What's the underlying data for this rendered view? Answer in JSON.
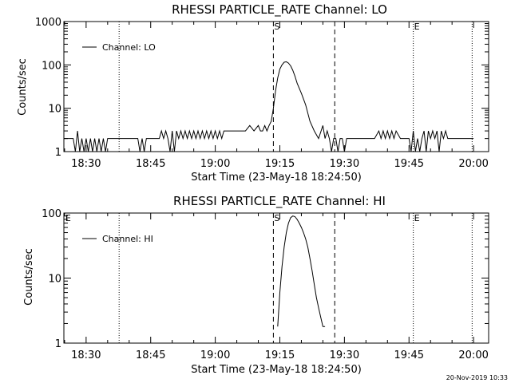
{
  "footer_timestamp": "20-Nov-2019 10:33",
  "chart_data": [
    {
      "type": "line",
      "title": "RHESSI PARTICLE_RATE Channel: LO",
      "xlabel": "Start Time (23-May-18 18:24:50)",
      "ylabel": "Counts/sec",
      "yscale": "log",
      "ylim": [
        1,
        1000
      ],
      "yticks": [
        "1",
        "10",
        "100",
        "1000"
      ],
      "xlim": [
        "18:24:50",
        "20:03:30"
      ],
      "xticks": [
        "18:30",
        "18:45",
        "19:00",
        "19:15",
        "19:30",
        "19:45",
        "20:00"
      ],
      "legend": {
        "label": "Channel: LO",
        "placement": "top-left"
      },
      "markers": [
        {
          "label": "",
          "time": "18:37:40",
          "style": "dotted"
        },
        {
          "label": "S",
          "time": "19:13:30",
          "style": "dashed"
        },
        {
          "label": "",
          "time": "19:27:45",
          "style": "dashed"
        },
        {
          "label": "E",
          "time": "19:46:00",
          "style": "dotted"
        },
        {
          "label": "",
          "time": "19:59:40",
          "style": "dotted"
        }
      ],
      "series": [
        {
          "name": "Channel: LO",
          "x": [
            "18:24:50",
            "18:27:00",
            "18:27:30",
            "18:28:00",
            "18:28:30",
            "18:29:00",
            "18:29:30",
            "18:30:00",
            "18:30:30",
            "18:31:00",
            "18:31:30",
            "18:32:00",
            "18:32:30",
            "18:33:00",
            "18:33:30",
            "18:34:00",
            "18:34:30",
            "18:35:00",
            "18:35:30",
            "18:36:00",
            "18:36:30",
            "18:37:00",
            "18:37:30",
            "18:38:00",
            "18:40:00",
            "18:42:00",
            "18:42:30",
            "18:43:00",
            "18:43:30",
            "18:44:00",
            "18:46:00",
            "18:47:00",
            "18:47:30",
            "18:48:00",
            "18:48:30",
            "18:49:00",
            "18:49:30",
            "18:50:00",
            "18:50:30",
            "18:51:00",
            "18:51:30",
            "18:52:00",
            "18:52:30",
            "18:53:00",
            "18:53:30",
            "18:54:00",
            "18:54:30",
            "18:55:00",
            "18:55:30",
            "18:56:00",
            "18:56:30",
            "18:57:00",
            "18:57:30",
            "18:58:00",
            "18:58:30",
            "18:59:00",
            "18:59:30",
            "19:00:00",
            "19:00:30",
            "19:01:00",
            "19:01:30",
            "19:02:00",
            "19:03:00",
            "19:04:00",
            "19:05:00",
            "19:06:00",
            "19:07:00",
            "19:08:00",
            "19:09:00",
            "19:10:00",
            "19:10:30",
            "19:11:00",
            "19:11:30",
            "19:12:00",
            "19:12:30",
            "19:13:00",
            "19:13:30",
            "19:14:00",
            "19:14:30",
            "19:15:00",
            "19:15:30",
            "19:16:00",
            "19:16:30",
            "19:17:00",
            "19:17:30",
            "19:18:00",
            "19:18:30",
            "19:19:00",
            "19:20:00",
            "19:21:00",
            "19:22:00",
            "19:23:00",
            "19:24:00",
            "19:25:00",
            "19:25:30",
            "19:26:00",
            "19:26:30",
            "19:27:00",
            "19:27:30",
            "19:28:00",
            "19:28:30",
            "19:29:00",
            "19:29:30",
            "19:30:00",
            "19:30:30",
            "19:31:00",
            "19:32:00",
            "19:33:00",
            "19:34:00",
            "19:35:00",
            "19:36:00",
            "19:37:00",
            "19:38:00",
            "19:38:30",
            "19:39:00",
            "19:39:30",
            "19:40:00",
            "19:40:30",
            "19:41:00",
            "19:41:30",
            "19:42:00",
            "19:43:00",
            "19:44:00",
            "19:44:30",
            "19:45:00",
            "19:45:30",
            "19:46:00",
            "19:46:30",
            "19:47:00",
            "19:47:30",
            "19:48:00",
            "19:48:30",
            "19:49:00",
            "19:49:30",
            "19:50:00",
            "19:50:30",
            "19:51:00",
            "19:51:30",
            "19:52:00",
            "19:52:30",
            "19:53:00",
            "19:53:30",
            "19:54:00",
            "19:54:30",
            "19:55:00",
            "19:55:30",
            "19:56:00",
            "19:58:00",
            "20:00:00"
          ],
          "y": [
            2,
            2,
            1,
            3,
            1,
            2,
            1,
            2,
            1,
            2,
            1,
            2,
            1,
            2,
            1,
            2,
            1,
            2,
            2,
            2,
            2,
            2,
            2,
            2,
            2,
            2,
            1,
            2,
            1,
            2,
            2,
            2,
            3,
            2,
            3,
            2,
            1,
            3,
            1,
            3,
            2,
            3,
            2,
            3,
            2,
            3,
            2,
            3,
            2,
            3,
            2,
            3,
            2,
            3,
            2,
            3,
            2,
            3,
            2,
            3,
            2,
            3,
            3,
            3,
            3,
            3,
            3,
            4,
            3,
            4,
            3,
            3,
            4,
            3,
            4,
            5,
            10,
            25,
            50,
            80,
            100,
            115,
            118,
            110,
            95,
            75,
            55,
            38,
            22,
            12,
            5,
            3,
            2,
            4,
            2,
            3,
            2,
            1,
            2,
            2,
            1,
            2,
            2,
            1,
            2,
            2,
            2,
            2,
            2,
            2,
            2,
            2,
            3,
            2,
            3,
            2,
            3,
            2,
            3,
            2,
            3,
            2,
            2,
            2,
            2,
            1,
            3,
            1,
            2,
            1,
            2,
            3,
            1,
            3,
            2,
            3,
            2,
            3,
            1,
            3,
            2,
            3,
            2,
            2,
            2,
            2,
            2,
            2,
            2
          ]
        }
      ]
    },
    {
      "type": "line",
      "title": "RHESSI PARTICLE_RATE Channel: HI",
      "xlabel": "Start Time (23-May-18 18:24:50)",
      "ylabel": "Counts/sec",
      "yscale": "log",
      "ylim": [
        1,
        100
      ],
      "yticks": [
        "1",
        "10",
        "100"
      ],
      "xlim": [
        "18:24:50",
        "20:03:30"
      ],
      "xticks": [
        "18:30",
        "18:45",
        "19:00",
        "19:15",
        "19:30",
        "19:45",
        "20:00"
      ],
      "legend": {
        "label": "Channel: HI",
        "placement": "top-left"
      },
      "markers": [
        {
          "label": "E",
          "time": "18:25:00",
          "style": "none"
        },
        {
          "label": "",
          "time": "18:37:40",
          "style": "dotted"
        },
        {
          "label": "S",
          "time": "19:13:30",
          "style": "dashed"
        },
        {
          "label": "",
          "time": "19:27:45",
          "style": "dashed"
        },
        {
          "label": "E",
          "time": "19:46:00",
          "style": "dotted"
        },
        {
          "label": "",
          "time": "19:59:40",
          "style": "dotted"
        }
      ],
      "series": [
        {
          "name": "Channel: HI",
          "x": [
            "19:14:30",
            "19:15:00",
            "19:15:30",
            "19:16:00",
            "19:16:30",
            "19:17:00",
            "19:17:30",
            "19:18:00",
            "19:18:30",
            "19:19:00",
            "19:19:30",
            "19:20:00",
            "19:20:30",
            "19:21:00",
            "19:21:30",
            "19:22:00",
            "19:22:30",
            "19:23:00",
            "19:23:30",
            "19:24:00",
            "19:24:30",
            "19:25:00",
            "19:25:30"
          ],
          "y": [
            1.8,
            6,
            15,
            30,
            50,
            70,
            85,
            90,
            88,
            80,
            70,
            60,
            50,
            40,
            30,
            20,
            13,
            8,
            5,
            3.5,
            2.5,
            1.8,
            1.8
          ]
        }
      ]
    }
  ]
}
